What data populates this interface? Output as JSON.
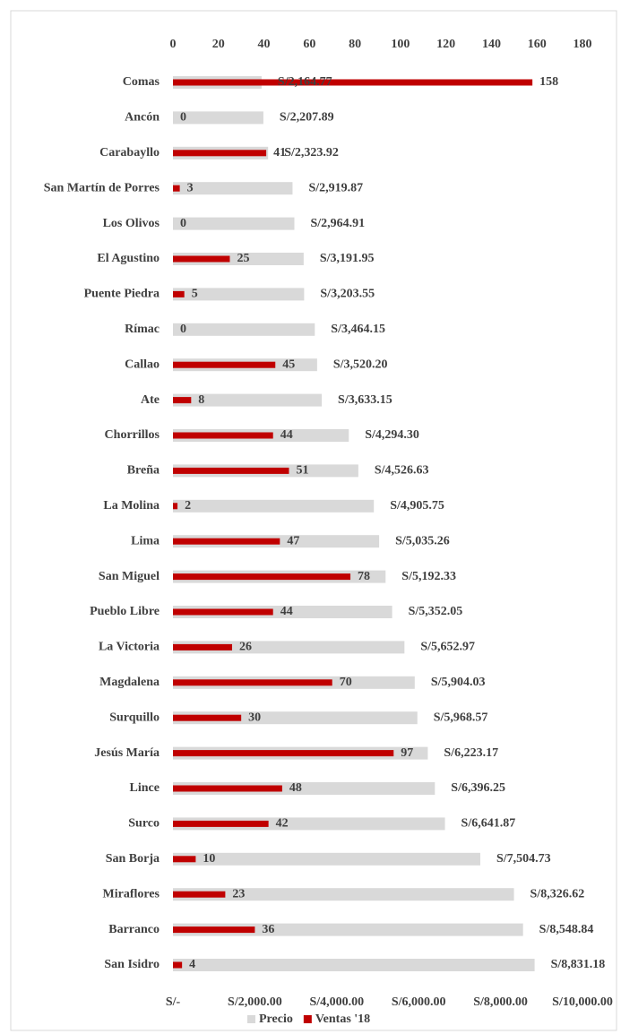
{
  "chart_data": {
    "type": "bar",
    "orientation": "horizontal",
    "categories": [
      "Comas",
      "Ancón",
      "Carabayllo",
      "San Martín de Porres",
      "Los Olivos",
      "El Agustino",
      "Puente Piedra",
      "Rímac",
      "Callao",
      "Ate",
      "Chorrillos",
      "Breña",
      "La Molina",
      "Lima",
      "San Miguel",
      "Pueblo Libre",
      "La Victoria",
      "Magdalena",
      "Surquillo",
      "Jesús María",
      "Lince",
      "Surco",
      "San Borja",
      "Miraflores",
      "Barranco",
      "San Isidro"
    ],
    "series": [
      {
        "name": "Precio",
        "color": "#d9d9d9",
        "axis": "x2",
        "values": [
          2164.77,
          2207.89,
          2323.92,
          2919.87,
          2964.91,
          3191.95,
          3203.55,
          3464.15,
          3520.2,
          3633.15,
          4294.3,
          4526.63,
          4905.75,
          5035.26,
          5192.33,
          5352.05,
          5652.97,
          5904.03,
          5968.57,
          6223.17,
          6396.25,
          6641.87,
          7504.73,
          8326.62,
          8548.84,
          8831.18
        ],
        "value_labels": [
          "S/2,164.77",
          "S/2,207.89",
          "S/2,323.92",
          "S/2,919.87",
          "S/2,964.91",
          "S/3,191.95",
          "S/3,203.55",
          "S/3,464.15",
          "S/3,520.20",
          "S/3,633.15",
          "S/4,294.30",
          "S/4,526.63",
          "S/4,905.75",
          "S/5,035.26",
          "S/5,192.33",
          "S/5,352.05",
          "S/5,652.97",
          "S/5,904.03",
          "S/5,968.57",
          "S/6,223.17",
          "S/6,396.25",
          "S/6,641.87",
          "S/7,504.73",
          "S/8,326.62",
          "S/8,548.84",
          "S/8,831.18"
        ]
      },
      {
        "name": "Ventas '18",
        "color": "#c00000",
        "values": [
          158,
          0,
          41,
          3,
          0,
          25,
          5,
          0,
          45,
          8,
          44,
          51,
          2,
          47,
          78,
          44,
          26,
          70,
          30,
          97,
          48,
          42,
          10,
          23,
          36,
          4
        ]
      }
    ],
    "xlim": [
      0,
      180
    ],
    "xticks": [
      0,
      20,
      40,
      60,
      80,
      100,
      120,
      140,
      160,
      180
    ],
    "x2lim": [
      0,
      10000
    ],
    "x2ticks": [
      {
        "value": 0,
        "label": "S/-"
      },
      {
        "value": 2000,
        "label": "S/2,000.00"
      },
      {
        "value": 4000,
        "label": "S/4,000.00"
      },
      {
        "value": 6000,
        "label": "S/6,000.00"
      },
      {
        "value": 8000,
        "label": "S/8,000.00"
      },
      {
        "value": 10000,
        "label": "S/10,000.00"
      }
    ],
    "legend": "bottom"
  }
}
